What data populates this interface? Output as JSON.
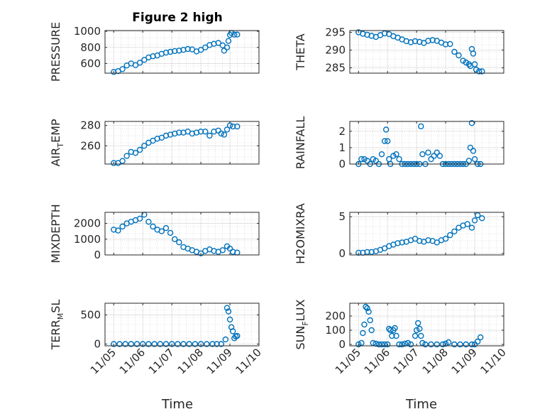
{
  "chart_data": {
    "title": "Figure 2 high",
    "xlabel": "Time",
    "x_tick_labels": [
      "11/05",
      "11/06",
      "11/07",
      "11/08",
      "11/09",
      "11/10"
    ],
    "marker_color": "#0072BD",
    "grid": true,
    "minor_grid": true,
    "panels": [
      {
        "name": "pressure",
        "type": "scatter",
        "ylabel_main": "PRESSURE",
        "ylabel_sub": "",
        "ylabel_tail": "",
        "ylim": [
          480,
          1010
        ],
        "yticks": [
          600,
          800,
          1000
        ],
        "ytick_labels": [
          "600",
          "800",
          "1000"
        ],
        "x": [
          0.0,
          0.15,
          0.3,
          0.45,
          0.6,
          0.75,
          0.9,
          1.05,
          1.2,
          1.35,
          1.5,
          1.65,
          1.8,
          1.95,
          2.1,
          2.25,
          2.4,
          2.55,
          2.7,
          2.85,
          3.0,
          3.15,
          3.3,
          3.45,
          3.6,
          3.75,
          3.8,
          3.9,
          3.95,
          4.0,
          4.05,
          4.15,
          4.25
        ],
        "y": [
          495,
          505,
          530,
          575,
          600,
          580,
          610,
          645,
          675,
          690,
          700,
          720,
          735,
          745,
          755,
          760,
          770,
          780,
          775,
          750,
          770,
          800,
          830,
          845,
          855,
          825,
          760,
          800,
          880,
          955,
          980,
          960,
          960
        ]
      },
      {
        "name": "theta",
        "type": "scatter",
        "ylabel_main": "THETA",
        "ylabel_sub": "",
        "ylabel_tail": "",
        "ylim": [
          283.5,
          295.5
        ],
        "yticks": [
          285,
          290,
          295
        ],
        "ytick_labels": [
          "285",
          "290",
          "295"
        ],
        "x": [
          0.0,
          0.15,
          0.3,
          0.45,
          0.6,
          0.75,
          0.9,
          1.05,
          1.2,
          1.35,
          1.5,
          1.65,
          1.8,
          1.95,
          2.1,
          2.25,
          2.4,
          2.55,
          2.7,
          2.85,
          3.0,
          3.15,
          3.3,
          3.45,
          3.6,
          3.7,
          3.8,
          3.85,
          3.9,
          3.95,
          4.0,
          4.05,
          4.15,
          4.25
        ],
        "y": [
          295.0,
          294.6,
          294.3,
          294.0,
          293.7,
          294.2,
          294.7,
          294.5,
          293.9,
          293.5,
          293.0,
          292.5,
          292.2,
          292.5,
          292.3,
          292.0,
          292.6,
          292.8,
          292.6,
          292.1,
          291.6,
          291.7,
          289.5,
          288.5,
          287.0,
          286.5,
          286.0,
          285.5,
          290.3,
          289.0,
          286.0,
          284.5,
          284.0,
          284.0
        ]
      },
      {
        "name": "air-temp",
        "type": "scatter",
        "ylabel_main": "AIR",
        "ylabel_sub": "T",
        "ylabel_tail": "EMP",
        "ylim": [
          242,
          284
        ],
        "yticks": [
          260,
          280
        ],
        "ytick_labels": [
          "260",
          "280"
        ],
        "x": [
          0.0,
          0.15,
          0.3,
          0.45,
          0.6,
          0.75,
          0.9,
          1.05,
          1.2,
          1.35,
          1.5,
          1.65,
          1.8,
          1.95,
          2.1,
          2.25,
          2.4,
          2.55,
          2.7,
          2.85,
          3.0,
          3.15,
          3.3,
          3.45,
          3.6,
          3.7,
          3.8,
          3.9,
          4.0,
          4.1,
          4.25
        ],
        "y": [
          243,
          243,
          245,
          250,
          254,
          253,
          256,
          260,
          263,
          265,
          267,
          268,
          270,
          271,
          272,
          273,
          273,
          274,
          272,
          273,
          274,
          274,
          270,
          274,
          275,
          272,
          271,
          276,
          280,
          279,
          279
        ]
      },
      {
        "name": "rainfall",
        "type": "scatter",
        "ylabel_main": "RAINFALL",
        "ylabel_sub": "",
        "ylabel_tail": "",
        "ylim": [
          0,
          2.6
        ],
        "yticks": [
          0,
          1,
          2
        ],
        "ytick_labels": [
          "0",
          "1",
          "2"
        ],
        "x": [
          0.0,
          0.1,
          0.2,
          0.3,
          0.4,
          0.5,
          0.6,
          0.7,
          0.8,
          0.9,
          0.95,
          1.0,
          1.05,
          1.1,
          1.2,
          1.3,
          1.4,
          1.5,
          1.6,
          1.7,
          1.8,
          1.9,
          2.0,
          2.1,
          2.15,
          2.2,
          2.3,
          2.4,
          2.5,
          2.6,
          2.7,
          2.8,
          2.9,
          3.0,
          3.1,
          3.2,
          3.3,
          3.4,
          3.5,
          3.6,
          3.7,
          3.8,
          3.85,
          3.9,
          3.95,
          4.0,
          4.1,
          4.2
        ],
        "y": [
          0,
          0.3,
          0.3,
          0.2,
          0,
          0.3,
          0.2,
          0,
          0.6,
          1.4,
          2.1,
          1.4,
          0.3,
          0,
          0.5,
          0.6,
          0.3,
          0,
          0,
          0,
          0,
          0,
          0,
          0,
          2.3,
          0.6,
          0,
          0.7,
          0.3,
          0.5,
          0.7,
          0.5,
          0,
          0,
          0,
          0,
          0,
          0,
          0,
          0,
          0,
          0.2,
          1.0,
          2.5,
          0.8,
          0.3,
          0,
          0
        ]
      },
      {
        "name": "mixdepth",
        "type": "scatter",
        "ylabel_main": "MIXDEPTH",
        "ylabel_sub": "",
        "ylabel_tail": "",
        "ylim": [
          0,
          2700
        ],
        "yticks": [
          0,
          1000,
          2000
        ],
        "ytick_labels": [
          "0",
          "1000",
          "2000"
        ],
        "x": [
          0.0,
          0.15,
          0.3,
          0.45,
          0.6,
          0.75,
          0.9,
          1.05,
          1.2,
          1.35,
          1.5,
          1.65,
          1.8,
          1.95,
          2.1,
          2.25,
          2.4,
          2.55,
          2.7,
          2.85,
          3.0,
          3.15,
          3.3,
          3.45,
          3.6,
          3.75,
          3.9,
          4.0,
          4.1,
          4.25
        ],
        "y": [
          1600,
          1550,
          1800,
          2000,
          2100,
          2200,
          2300,
          2550,
          2100,
          1800,
          1600,
          1500,
          1700,
          1400,
          1000,
          800,
          500,
          400,
          300,
          200,
          100,
          250,
          350,
          250,
          200,
          300,
          550,
          400,
          200,
          150
        ]
      },
      {
        "name": "h2omixra",
        "type": "scatter",
        "ylabel_main": "H2OMIXRA",
        "ylabel_sub": "",
        "ylabel_tail": "",
        "ylim": [
          -0.2,
          5.6
        ],
        "yticks": [
          0,
          5
        ],
        "ytick_labels": [
          "0",
          "5"
        ],
        "x": [
          0.0,
          0.15,
          0.3,
          0.45,
          0.6,
          0.75,
          0.9,
          1.05,
          1.2,
          1.35,
          1.5,
          1.65,
          1.8,
          1.95,
          2.1,
          2.25,
          2.4,
          2.55,
          2.7,
          2.85,
          3.0,
          3.15,
          3.3,
          3.45,
          3.6,
          3.75,
          3.9,
          4.0,
          4.1,
          4.25
        ],
        "y": [
          0.1,
          0.1,
          0.2,
          0.2,
          0.3,
          0.5,
          0.7,
          1.0,
          1.2,
          1.4,
          1.5,
          1.6,
          1.8,
          2.0,
          1.7,
          1.6,
          1.8,
          1.7,
          1.5,
          1.8,
          2.0,
          2.5,
          3.0,
          3.5,
          3.8,
          4.0,
          3.5,
          4.5,
          5.2,
          4.8
        ]
      },
      {
        "name": "terr-msl",
        "type": "scatter",
        "ylabel_main": "TERR",
        "ylabel_sub": "M",
        "ylabel_tail": "SL",
        "ylim": [
          -30,
          700
        ],
        "yticks": [
          0,
          500
        ],
        "ytick_labels": [
          "0",
          "500"
        ],
        "x": [
          0.0,
          0.2,
          0.4,
          0.6,
          0.8,
          1.0,
          1.2,
          1.4,
          1.6,
          1.8,
          2.0,
          2.2,
          2.4,
          2.6,
          2.8,
          3.0,
          3.2,
          3.4,
          3.55,
          3.7,
          3.85,
          3.9,
          3.95,
          4.0,
          4.05,
          4.1,
          4.15,
          4.2,
          4.25
        ],
        "y": [
          0,
          0,
          0,
          0,
          0,
          0,
          0,
          0,
          0,
          0,
          0,
          0,
          0,
          0,
          0,
          0,
          0,
          0,
          0,
          0,
          80,
          620,
          560,
          420,
          290,
          220,
          100,
          130,
          140
        ]
      },
      {
        "name": "sun-flux",
        "type": "scatter",
        "ylabel_main": "SUN",
        "ylabel_sub": "F",
        "ylabel_tail": "LUX",
        "ylim": [
          -10,
          290
        ],
        "yticks": [
          0,
          100,
          200
        ],
        "ytick_labels": [
          "0",
          "100",
          "200"
        ],
        "x": [
          0.0,
          0.1,
          0.15,
          0.2,
          0.25,
          0.3,
          0.35,
          0.4,
          0.45,
          0.5,
          0.6,
          0.7,
          0.8,
          0.9,
          1.0,
          1.05,
          1.1,
          1.15,
          1.2,
          1.25,
          1.3,
          1.4,
          1.5,
          1.6,
          1.7,
          1.8,
          1.95,
          2.0,
          2.05,
          2.1,
          2.15,
          2.2,
          2.3,
          2.5,
          2.7,
          2.9,
          3.0,
          3.1,
          3.3,
          3.5,
          3.7,
          3.9,
          4.0,
          4.1,
          4.2
        ],
        "y": [
          0,
          10,
          80,
          140,
          265,
          255,
          230,
          170,
          100,
          10,
          5,
          0,
          0,
          0,
          0,
          110,
          100,
          60,
          100,
          115,
          60,
          0,
          0,
          5,
          10,
          0,
          60,
          100,
          150,
          110,
          60,
          10,
          0,
          0,
          0,
          0,
          5,
          15,
          0,
          0,
          0,
          0,
          0,
          20,
          50
        ]
      }
    ]
  }
}
